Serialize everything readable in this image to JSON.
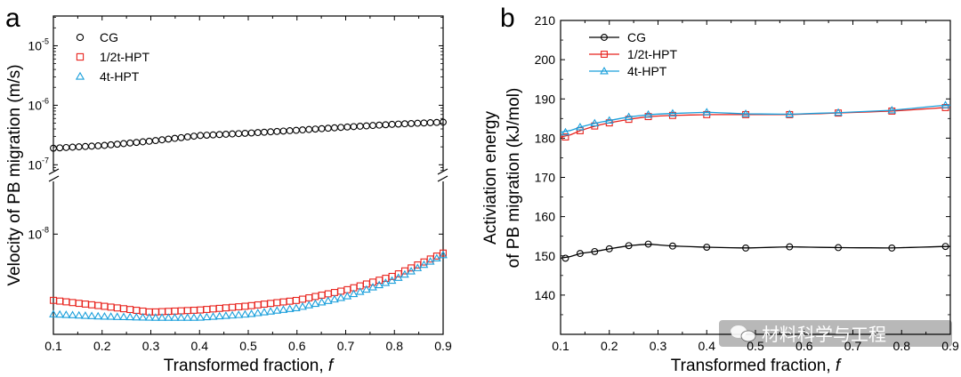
{
  "panels": {
    "a": {
      "letter": "a"
    },
    "b": {
      "letter": "b"
    }
  },
  "watermark": {
    "text": "材料科学与工程"
  },
  "chart_data": [
    {
      "panel": "a",
      "type": "scatter",
      "title": "",
      "xlabel_main": "Transformed fraction, ",
      "xlabel_italic": "f",
      "ylabel": "Velocity of PB migration (m/s)",
      "xlim": [
        0.1,
        0.9
      ],
      "xticks": [
        0.1,
        0.2,
        0.3,
        0.4,
        0.5,
        0.6,
        0.7,
        0.8,
        0.9
      ],
      "x_tick_labels": [
        "0.1",
        "0.2",
        "0.3",
        "0.4",
        "0.5",
        "0.6",
        "0.7",
        "0.8",
        "0.9"
      ],
      "y_scale": "log, broken axis",
      "y_upper_range_log10": [
        -7.1,
        -4.5
      ],
      "y_lower_range_log10": [
        -8.57,
        -7.7
      ],
      "y_tick_labels": [
        {
          "base": "10",
          "exp": "-5",
          "log10": -5
        },
        {
          "base": "10",
          "exp": "-6",
          "log10": -6
        },
        {
          "base": "10",
          "exp": "-7",
          "log10": -7
        },
        {
          "base": "10",
          "exp": "-8",
          "log10": -8
        }
      ],
      "legend_position": "top-left",
      "series": [
        {
          "name": "CG",
          "color": "#000000",
          "marker": "circle",
          "x": [
            0.1,
            0.2,
            0.3,
            0.4,
            0.5,
            0.6,
            0.7,
            0.8,
            0.9
          ],
          "values": [
            1.9e-07,
            2.1e-07,
            2.5e-07,
            3.1e-07,
            3.4e-07,
            3.8e-07,
            4.3e-07,
            4.8e-07,
            5.2e-07
          ]
        },
        {
          "name": "1/2t-HPT",
          "color": "#e8221c",
          "marker": "square",
          "x": [
            0.1,
            0.2,
            0.3,
            0.4,
            0.5,
            0.6,
            0.7,
            0.8,
            0.9
          ],
          "values": [
            4.2e-09,
            3.9e-09,
            3.6e-09,
            3.7e-09,
            3.9e-09,
            4.2e-09,
            4.8e-09,
            5.8e-09,
            7.8e-09
          ]
        },
        {
          "name": "4t-HPT",
          "color": "#1a9fdb",
          "marker": "triangle",
          "x": [
            0.1,
            0.2,
            0.3,
            0.4,
            0.5,
            0.6,
            0.7,
            0.8,
            0.9
          ],
          "values": [
            3.5e-09,
            3.4e-09,
            3.35e-09,
            3.35e-09,
            3.5e-09,
            3.8e-09,
            4.4e-09,
            5.5e-09,
            7.6e-09
          ]
        }
      ]
    },
    {
      "panel": "b",
      "type": "line",
      "title": "",
      "xlabel_main": "Transformed fraction, ",
      "xlabel_italic": "f",
      "ylabel_line1": "Activiation energy",
      "ylabel_line2": "of PB migration (kJ/mol)",
      "xlim": [
        0.1,
        0.9
      ],
      "ylim": [
        130,
        210
      ],
      "xticks": [
        0.1,
        0.2,
        0.3,
        0.4,
        0.5,
        0.6,
        0.7,
        0.8,
        0.9
      ],
      "x_tick_labels": [
        "0.1",
        "0.2",
        "0.3",
        "0.4",
        "0.5",
        "0.6",
        "0.7",
        "0.8",
        "0.9"
      ],
      "yticks": [
        140,
        150,
        160,
        170,
        180,
        190,
        200,
        210
      ],
      "y_tick_labels": [
        "140",
        "150",
        "160",
        "170",
        "180",
        "190",
        "200",
        "210"
      ],
      "legend_position": "top-left",
      "series": [
        {
          "name": "CG",
          "color": "#000000",
          "marker": "circle",
          "x": [
            0.11,
            0.14,
            0.17,
            0.2,
            0.24,
            0.28,
            0.33,
            0.4,
            0.48,
            0.57,
            0.67,
            0.78,
            0.89
          ],
          "values": [
            149.4,
            150.6,
            151.1,
            151.8,
            152.6,
            153.0,
            152.5,
            152.2,
            152.0,
            152.3,
            152.1,
            152.0,
            152.4
          ]
        },
        {
          "name": "1/2t-HPT",
          "color": "#e8221c",
          "marker": "square",
          "x": [
            0.11,
            0.14,
            0.17,
            0.2,
            0.24,
            0.28,
            0.33,
            0.4,
            0.48,
            0.57,
            0.67,
            0.78,
            0.89
          ],
          "values": [
            180.3,
            181.9,
            183.1,
            183.9,
            184.8,
            185.5,
            185.8,
            186.0,
            186.0,
            186.0,
            186.4,
            186.9,
            187.8
          ]
        },
        {
          "name": "4t-HPT",
          "color": "#1a9fdb",
          "marker": "triangle",
          "x": [
            0.11,
            0.14,
            0.17,
            0.2,
            0.24,
            0.28,
            0.33,
            0.4,
            0.48,
            0.57,
            0.67,
            0.78,
            0.89
          ],
          "values": [
            181.5,
            182.8,
            183.8,
            184.5,
            185.4,
            186.0,
            186.3,
            186.6,
            186.2,
            186.1,
            186.5,
            187.1,
            188.4
          ]
        }
      ]
    }
  ]
}
